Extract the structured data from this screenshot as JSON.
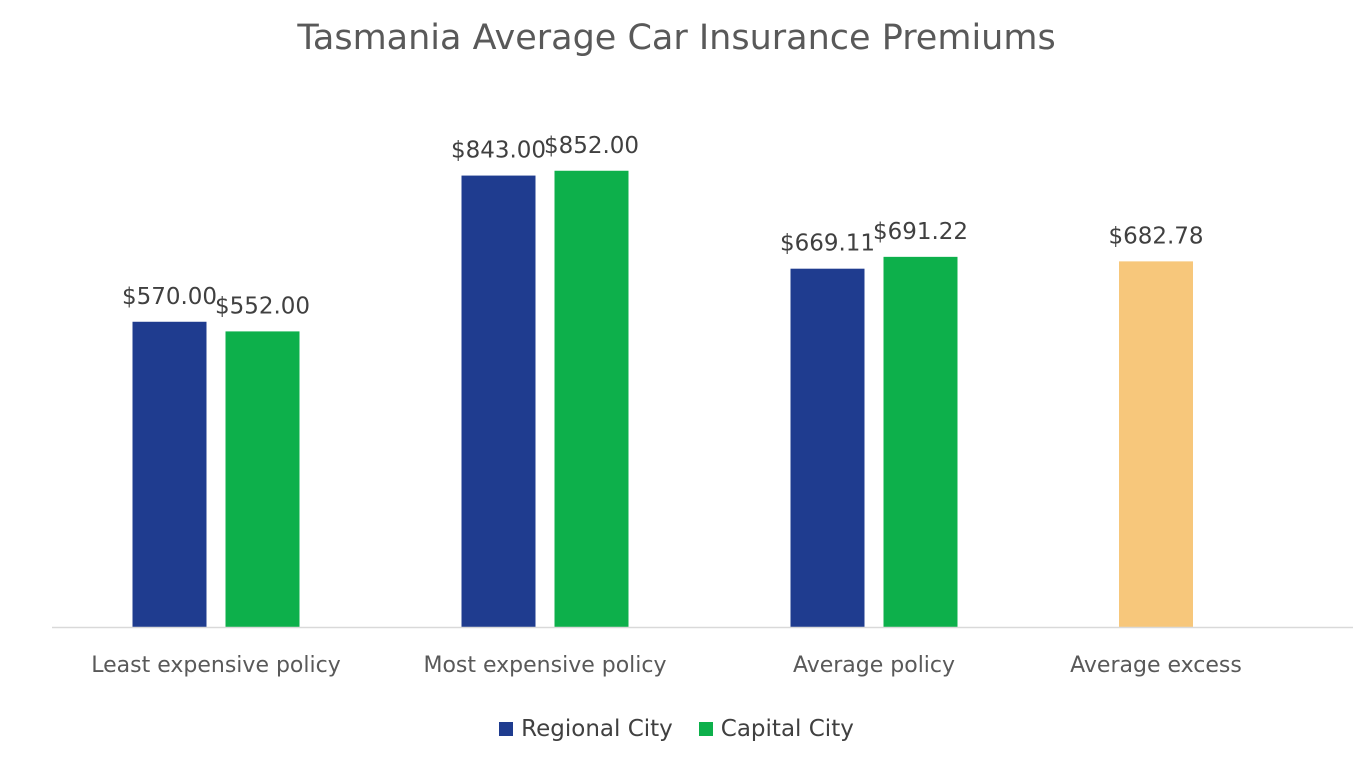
{
  "chart_data": {
    "type": "bar",
    "title": "Tasmania Average Car Insurance Premiums",
    "xlabel": "",
    "ylabel": "",
    "ylim": [
      0,
      900
    ],
    "grid": false,
    "legend_position": "bottom",
    "categories": [
      "Least expensive policy",
      "Most expensive policy",
      "Average policy",
      "Average excess"
    ],
    "series": [
      {
        "name": "Regional City",
        "color": "#1f3c8f",
        "values": [
          570.0,
          843.0,
          669.11,
          null
        ]
      },
      {
        "name": "Capital City",
        "color": "#0db04b",
        "values": [
          552.0,
          852.0,
          691.22,
          null
        ]
      },
      {
        "name": "",
        "color": "#f7c77b",
        "values": [
          null,
          null,
          null,
          682.78
        ]
      }
    ],
    "data_labels": [
      [
        "$570.00",
        "$843.00",
        "$669.11",
        null
      ],
      [
        "$552.00",
        "$852.00",
        "$691.22",
        null
      ],
      [
        null,
        null,
        null,
        "$682.78"
      ]
    ]
  }
}
